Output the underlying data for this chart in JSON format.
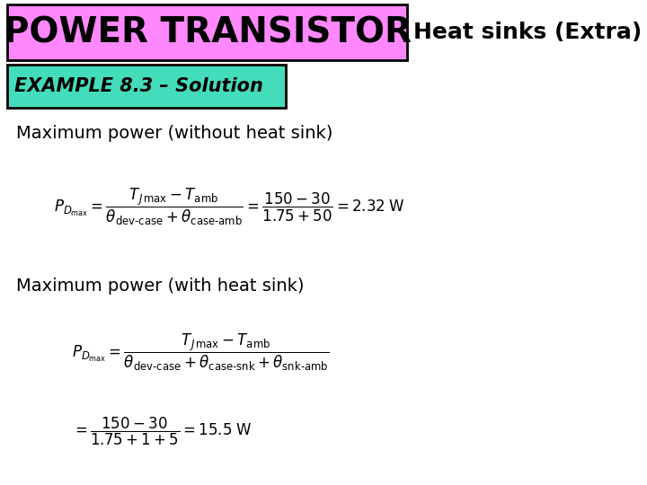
{
  "bg_color": "#ffffff",
  "title_box_color": "#ff88ff",
  "title_text": "POWER TRANSISTOR",
  "title_text_color": "#000000",
  "subtitle_text": "Heat sinks (Extra)",
  "subtitle_text_color": "#000000",
  "example_box_color": "#44ddbb",
  "example_text": "EXAMPLE 8.3 – Solution",
  "example_text_color": "#000000",
  "section1_label": "Maximum power (without heat sink)",
  "section2_label": "Maximum power (with heat sink)"
}
